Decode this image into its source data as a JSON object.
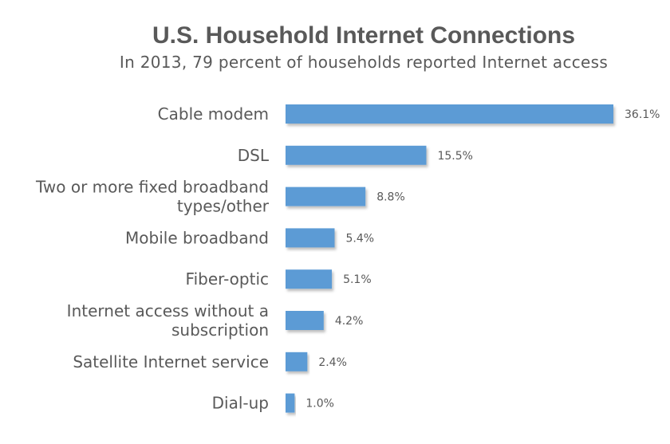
{
  "chart_data": {
    "type": "bar",
    "orientation": "horizontal",
    "title": "U.S. Household Internet Connections",
    "subtitle": "In 2013, 79 percent of households reported Internet access",
    "categories": [
      [
        "Cable modem"
      ],
      [
        "DSL"
      ],
      [
        "Two or more fixed broadband",
        "types/other"
      ],
      [
        "Mobile broadband"
      ],
      [
        "Fiber-optic"
      ],
      [
        "Internet access without a",
        "subscription"
      ],
      [
        "Satellite Internet service"
      ],
      [
        "Dial-up"
      ]
    ],
    "values": [
      36.1,
      15.5,
      8.8,
      5.4,
      5.1,
      4.2,
      2.4,
      1.0
    ],
    "value_labels": [
      "36.1%",
      "15.5%",
      "8.8%",
      "5.4%",
      "5.1%",
      "4.2%",
      "2.4%",
      "1.0%"
    ],
    "xlim": [
      0,
      36.1
    ],
    "xlabel": "",
    "ylabel": "",
    "grid": false,
    "bar_color": "#5B9BD5"
  }
}
